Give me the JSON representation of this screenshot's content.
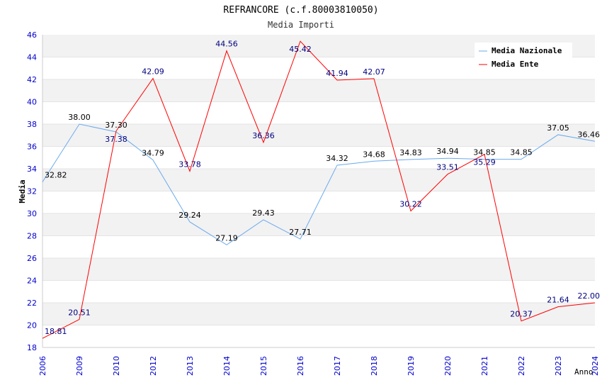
{
  "chart_data": {
    "type": "line",
    "title": "REFRANCORE (c.f.80003810050)",
    "subtitle": "Media Importi",
    "xlabel": "Anno",
    "ylabel": "Media",
    "ylim": [
      18,
      46
    ],
    "yticks": [
      "18",
      "20",
      "22",
      "24",
      "26",
      "28",
      "30",
      "32",
      "34",
      "36",
      "38",
      "40",
      "42",
      "44",
      "46"
    ],
    "categories": [
      "2006",
      "2009",
      "2010",
      "2012",
      "2013",
      "2014",
      "2015",
      "2016",
      "2017",
      "2018",
      "2019",
      "2020",
      "2021",
      "2022",
      "2023",
      "2024"
    ],
    "legend_position": "top-right",
    "grid": true,
    "series": [
      {
        "name": "Media Nazionale",
        "color": "#6aaaee",
        "label_color": "#000000",
        "values": [
          32.82,
          38.0,
          37.3,
          34.79,
          29.24,
          27.19,
          29.43,
          27.71,
          34.32,
          34.68,
          34.83,
          34.94,
          34.85,
          34.85,
          37.05,
          36.46
        ],
        "labels": [
          "32.82",
          "38.00",
          "37.30",
          "34.79",
          "29.24",
          "27.19",
          "29.43",
          "27.71",
          "34.32",
          "34.68",
          "34.83",
          "34.94",
          "34.85",
          "34.85",
          "37.05",
          "36.46"
        ]
      },
      {
        "name": "Media Ente",
        "color": "#ff0000",
        "label_color": "#000080",
        "values": [
          18.81,
          20.51,
          37.38,
          42.09,
          33.78,
          44.56,
          36.36,
          45.42,
          41.94,
          42.07,
          30.22,
          33.51,
          35.29,
          20.37,
          21.64,
          22.0
        ],
        "labels": [
          "18.81",
          "20.51",
          "37.38",
          "42.09",
          "33.78",
          "44.56",
          "36.36",
          "45.42",
          "41.94",
          "42.07",
          "30.22",
          "33.51",
          "35.29",
          "20.37",
          "21.64",
          "22.00"
        ]
      }
    ]
  }
}
